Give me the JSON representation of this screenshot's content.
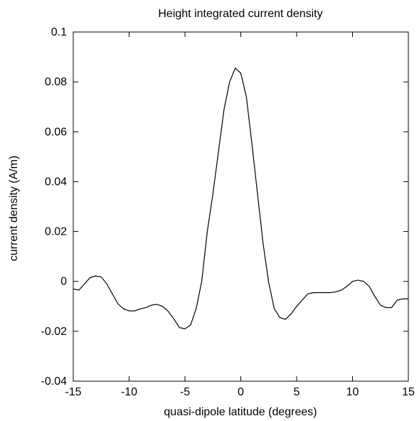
{
  "chart_data": {
    "type": "line",
    "title": "Height integrated current density",
    "xlabel": "quasi-dipole latitude (degrees)",
    "ylabel": "current density (A/m)",
    "xlim": [
      -15,
      15
    ],
    "ylim": [
      -0.04,
      0.1
    ],
    "xticks": [
      -15,
      -10,
      -5,
      0,
      5,
      10,
      15
    ],
    "xtick_labels": [
      "-15",
      "-10",
      "-5",
      "0",
      "5",
      "10",
      "15"
    ],
    "yticks": [
      -0.04,
      -0.02,
      0,
      0.02,
      0.04,
      0.06,
      0.08,
      0.1
    ],
    "ytick_labels": [
      "-0.04",
      "-0.02",
      "0",
      "0.02",
      "0.04",
      "0.06",
      "0.08",
      "0.1"
    ],
    "grid": false,
    "line_color": "#000000",
    "series": [
      {
        "x": [
          -15,
          -14.5,
          -14,
          -13.5,
          -13,
          -12.5,
          -12,
          -11.5,
          -11,
          -10.5,
          -10,
          -9.5,
          -9,
          -8.5,
          -8,
          -7.5,
          -7,
          -6.5,
          -6,
          -5.5,
          -5,
          -4.5,
          -4,
          -3.5,
          -3,
          -2.5,
          -2,
          -1.5,
          -1,
          -0.5,
          0,
          0.5,
          1,
          1.5,
          2,
          2.5,
          3,
          3.5,
          4,
          4.5,
          5,
          5.5,
          6,
          6.5,
          7,
          7.5,
          8,
          8.5,
          9,
          9.5,
          10,
          10.5,
          11,
          11.5,
          12,
          12.5,
          13,
          13.5,
          14,
          14.5,
          15
        ],
        "y": [
          -0.003,
          -0.0035,
          -0.001,
          0.0015,
          0.0022,
          0.0018,
          -0.001,
          -0.005,
          -0.009,
          -0.011,
          -0.0118,
          -0.0118,
          -0.011,
          -0.0105,
          -0.0095,
          -0.0092,
          -0.01,
          -0.012,
          -0.015,
          -0.0185,
          -0.019,
          -0.0175,
          -0.011,
          0.0,
          0.02,
          0.035,
          0.052,
          0.069,
          0.08,
          0.0855,
          0.0835,
          0.074,
          0.055,
          0.035,
          0.015,
          -0.0005,
          -0.011,
          -0.0145,
          -0.0152,
          -0.013,
          -0.01,
          -0.0075,
          -0.005,
          -0.0045,
          -0.0045,
          -0.0045,
          -0.0045,
          -0.0042,
          -0.0035,
          -0.002,
          0.0,
          0.0005,
          0.0,
          -0.002,
          -0.006,
          -0.0095,
          -0.0105,
          -0.0105,
          -0.0075,
          -0.007,
          -0.007
        ]
      }
    ]
  }
}
